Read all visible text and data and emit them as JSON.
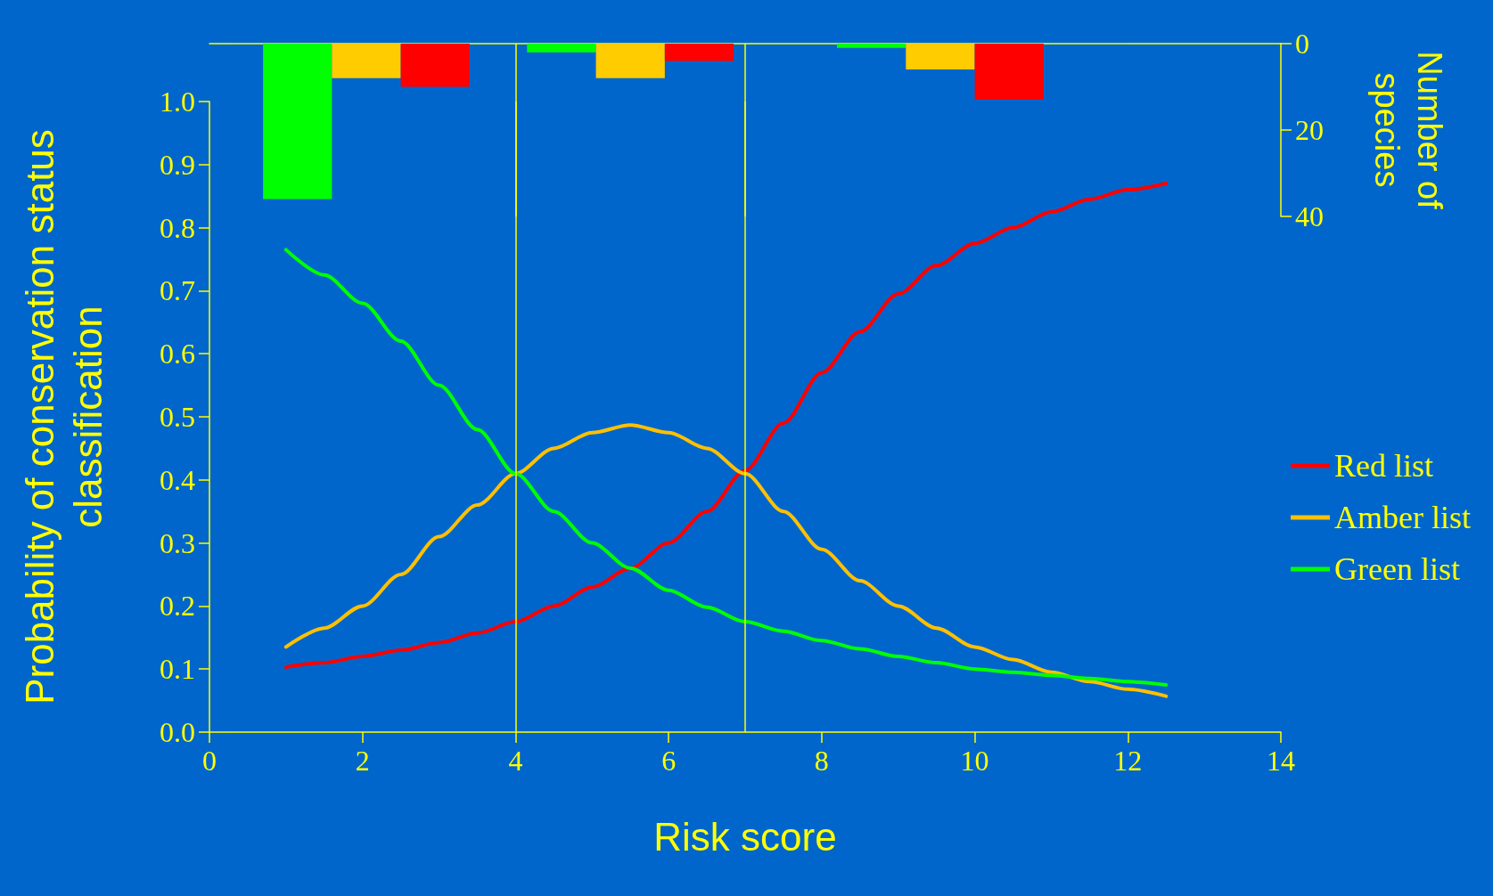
{
  "chart_data": [
    {
      "type": "bar",
      "ylabel": "Number of species",
      "xlim": [
        0,
        14
      ],
      "ylim": [
        40,
        0
      ],
      "yticks": [
        0,
        20,
        40
      ],
      "tick_labels": "y",
      "series": [
        {
          "color": "#00ff00",
          "x": [
            1.15,
            4.6,
            8.65
          ],
          "values": [
            36,
            2,
            1
          ]
        },
        {
          "color": "#ffcc00",
          "x": [
            2.05,
            5.5,
            9.55
          ],
          "values": [
            8,
            8,
            6
          ]
        },
        {
          "color": "#ff0000",
          "x": [
            2.95,
            6.4,
            10.45
          ],
          "values": [
            10,
            4,
            13
          ]
        }
      ],
      "ref_lines": [
        {
          "axis": "x",
          "value": 4,
          "color": "#ffff00"
        },
        {
          "axis": "x",
          "value": 7,
          "color": "#ffff00"
        }
      ]
    },
    {
      "type": "line",
      "xlabel": "Risk score",
      "ylabel": "Probability of conservation status classification",
      "xlim": [
        0,
        14
      ],
      "xticks": [
        0,
        2,
        4,
        6,
        8,
        10,
        12,
        14
      ],
      "ylim": [
        0,
        1
      ],
      "yticks": [
        {
          "value": 0,
          "label": "0.0"
        },
        0.1,
        0.2,
        0.3,
        0.4,
        0.5,
        0.6,
        0.7,
        0.8,
        0.9,
        {
          "value": 1,
          "label": "1.0"
        }
      ],
      "legend": "right",
      "x": [
        1,
        1.5,
        2,
        2.5,
        3,
        3.5,
        4,
        4.5,
        5,
        5.5,
        6,
        6.5,
        7,
        7.5,
        8,
        8.5,
        9,
        9.5,
        10,
        10.5,
        11,
        11.5,
        12,
        12.5
      ],
      "series": [
        {
          "name": "Red list",
          "color": "#ff0000",
          "values": [
            0.103,
            0.11,
            0.12,
            0.13,
            0.142,
            0.157,
            0.175,
            0.2,
            0.23,
            0.26,
            0.3,
            0.35,
            0.415,
            0.49,
            0.57,
            0.635,
            0.695,
            0.74,
            0.775,
            0.8,
            0.825,
            0.845,
            0.86,
            0.87
          ]
        },
        {
          "name": "Amber list",
          "color": "#ffc000",
          "values": [
            0.135,
            0.165,
            0.2,
            0.25,
            0.31,
            0.36,
            0.41,
            0.45,
            0.475,
            0.487,
            0.475,
            0.45,
            0.41,
            0.35,
            0.29,
            0.24,
            0.2,
            0.165,
            0.135,
            0.115,
            0.095,
            0.08,
            0.068,
            0.057
          ]
        },
        {
          "name": "Green list",
          "color": "#00ff00",
          "values": [
            0.765,
            0.725,
            0.68,
            0.62,
            0.55,
            0.48,
            0.41,
            0.35,
            0.3,
            0.26,
            0.225,
            0.198,
            0.175,
            0.16,
            0.145,
            0.132,
            0.12,
            0.11,
            0.1,
            0.095,
            0.09,
            0.085,
            0.08,
            0.075
          ]
        }
      ],
      "ref_lines": [
        {
          "axis": "x",
          "value": 4,
          "color": "#ffff00"
        },
        {
          "axis": "x",
          "value": 7,
          "color": "#ffff00"
        }
      ]
    }
  ]
}
